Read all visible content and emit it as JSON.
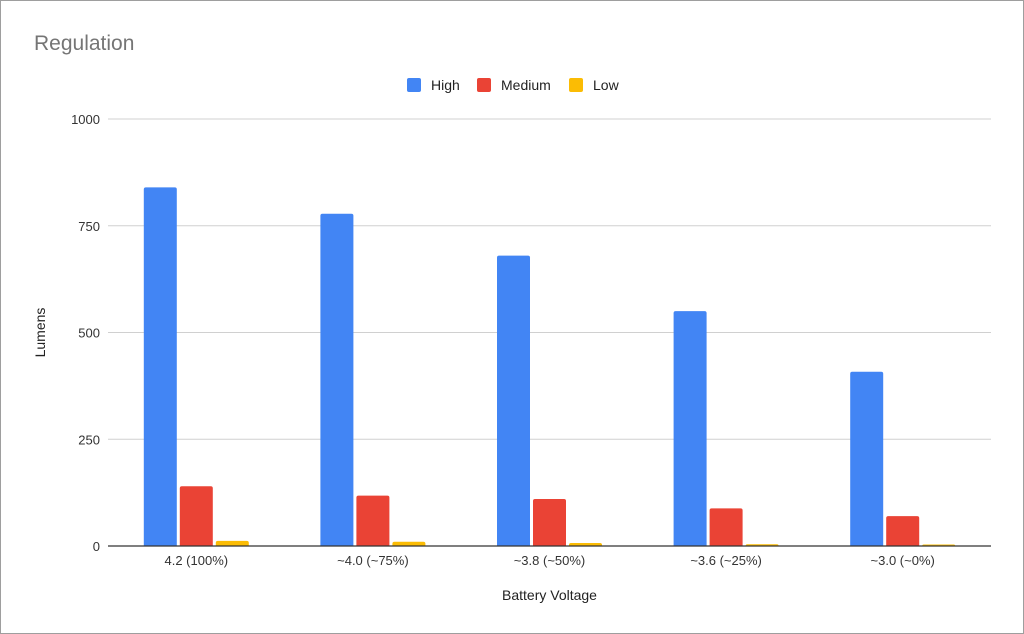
{
  "chart_data": {
    "type": "bar",
    "title": "Regulation",
    "xlabel": "Battery Voltage",
    "ylabel": "Lumens",
    "categories": [
      "4.2 (100%)",
      "~4.0 (~75%)",
      "~3.8 (~50%)",
      "~3.6 (~25%)",
      "~3.0 (~0%)"
    ],
    "series": [
      {
        "name": "High",
        "color": "#4285f4",
        "values": [
          840,
          778,
          680,
          550,
          408
        ]
      },
      {
        "name": "Medium",
        "color": "#ea4335",
        "values": [
          140,
          118,
          110,
          88,
          70
        ]
      },
      {
        "name": "Low",
        "color": "#fbbc04",
        "values": [
          12,
          10,
          7,
          4,
          2
        ]
      }
    ],
    "ylim": [
      0,
      1000
    ],
    "yticks": [
      0,
      250,
      500,
      750,
      1000
    ],
    "grid": true,
    "legend_position": "top"
  }
}
